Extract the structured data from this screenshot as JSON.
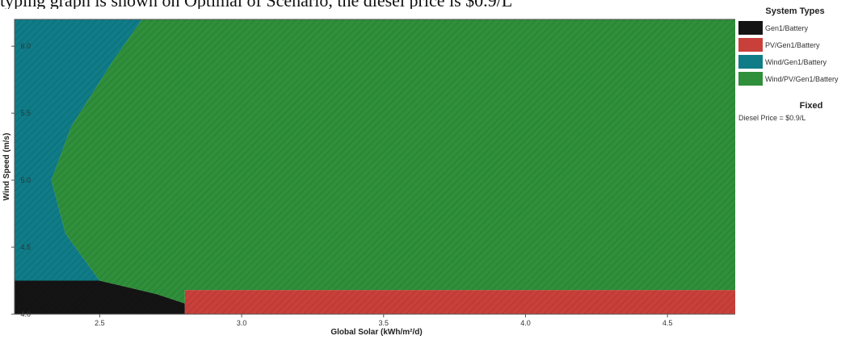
{
  "caption": "typing graph is shown on Optimal of Scenario, the diesel price is $0.9/L",
  "chart_data": {
    "type": "area",
    "title": "",
    "xlabel": "Global Solar (kWh/m²/d)",
    "ylabel": "Wind Speed (m/s)",
    "xlim": [
      2.2,
      4.75
    ],
    "ylim": [
      4.0,
      6.2
    ],
    "xticks": [
      "2.5",
      "3.0",
      "3.5",
      "4.0",
      "4.5"
    ],
    "yticks": [
      "4.0",
      "4.5",
      "5.0",
      "5.5",
      "6.0"
    ],
    "grid": false,
    "legend_position": "right",
    "legend_title": "System Types",
    "series": [
      {
        "name": "Gen1/Battery",
        "color": "#141414",
        "polygon": [
          [
            2.2,
            4.0
          ],
          [
            2.8,
            4.0
          ],
          [
            2.8,
            4.08
          ],
          [
            2.7,
            4.15
          ],
          [
            2.6,
            4.2
          ],
          [
            2.5,
            4.25
          ],
          [
            2.2,
            4.25
          ]
        ]
      },
      {
        "name": "PV/Gen1/Battery",
        "color": "#c9403a",
        "polygon": [
          [
            2.8,
            4.0
          ],
          [
            4.75,
            4.0
          ],
          [
            4.75,
            4.18
          ],
          [
            2.8,
            4.18
          ]
        ]
      },
      {
        "name": "Wind/Gen1/Battery",
        "color": "#0f7c88",
        "polygon": [
          [
            2.2,
            4.25
          ],
          [
            2.5,
            4.25
          ],
          [
            2.38,
            4.6
          ],
          [
            2.33,
            5.0
          ],
          [
            2.4,
            5.4
          ],
          [
            2.55,
            5.9
          ],
          [
            2.65,
            6.2
          ],
          [
            2.2,
            6.2
          ]
        ]
      },
      {
        "name": "Wind/PV/Gen1/Battery",
        "color": "#2f8f3a",
        "polygon": [
          [
            2.5,
            4.25
          ],
          [
            2.6,
            4.2
          ],
          [
            2.7,
            4.15
          ],
          [
            2.8,
            4.08
          ],
          [
            2.8,
            4.18
          ],
          [
            4.75,
            4.18
          ],
          [
            4.75,
            6.2
          ],
          [
            2.65,
            6.2
          ],
          [
            2.55,
            5.9
          ],
          [
            2.4,
            5.4
          ],
          [
            2.33,
            5.0
          ],
          [
            2.38,
            4.6
          ]
        ]
      }
    ]
  },
  "fixed": {
    "title": "Fixed",
    "text": "Diesel Price = $0.9/L"
  }
}
